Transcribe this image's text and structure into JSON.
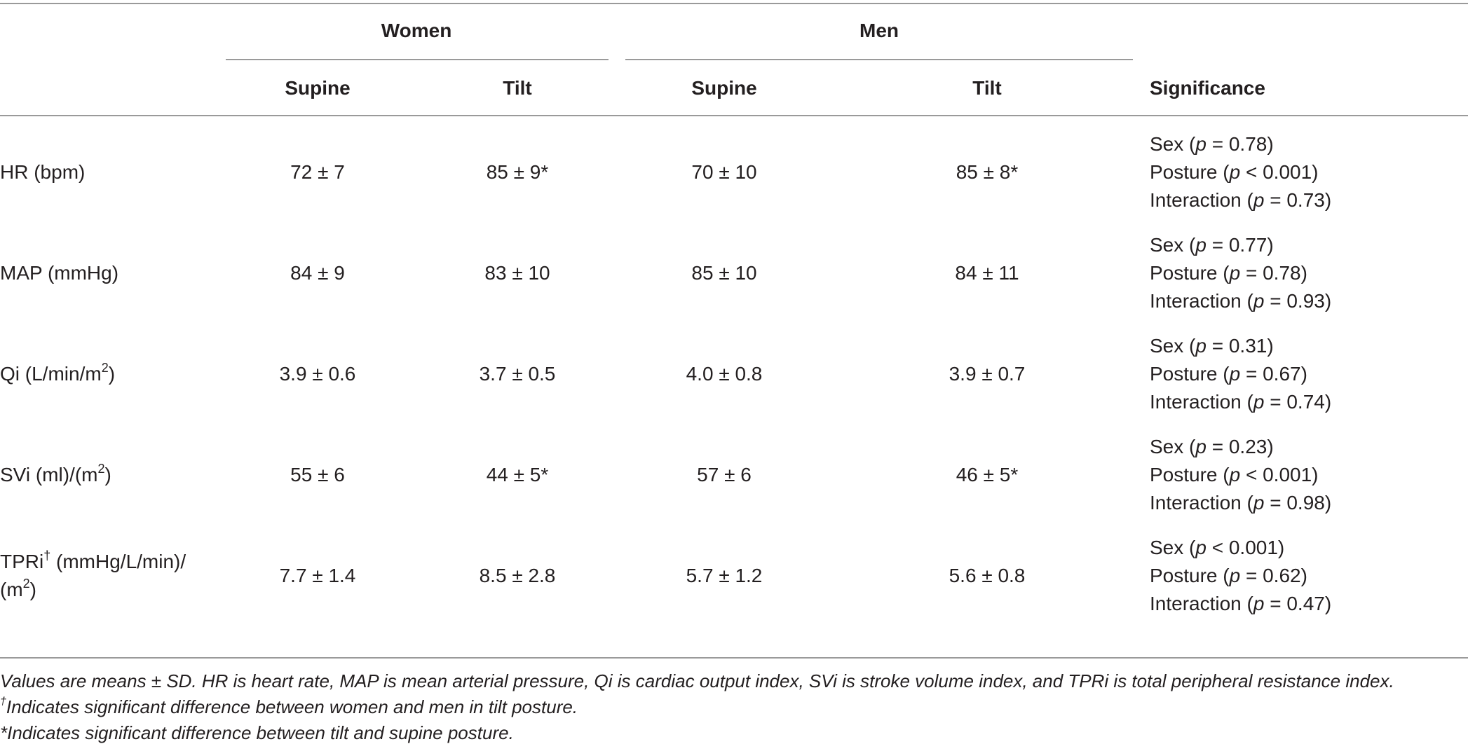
{
  "header": {
    "group_women": "Women",
    "group_men": "Men",
    "supine": "Supine",
    "tilt": "Tilt",
    "significance": "Significance"
  },
  "rows": [
    {
      "label": "HR (bpm)",
      "women_supine": "72 ± 7",
      "women_tilt": "85 ± 9*",
      "men_supine": "70 ± 10",
      "men_tilt": "85 ± 8*",
      "sig": [
        {
          "name": "Sex (",
          "p": "p",
          "val": " = 0.78)"
        },
        {
          "name": "Posture (",
          "p": "p",
          "val": " < 0.001)"
        },
        {
          "name": "Interaction (",
          "p": "p",
          "val": " = 0.73)"
        }
      ]
    },
    {
      "label": "MAP (mmHg)",
      "women_supine": "84 ± 9",
      "women_tilt": "83 ± 10",
      "men_supine": "85 ± 10",
      "men_tilt": "84 ± 11",
      "sig": [
        {
          "name": "Sex (",
          "p": "p",
          "val": " = 0.77)"
        },
        {
          "name": "Posture (",
          "p": "p",
          "val": " = 0.78)"
        },
        {
          "name": "Interaction (",
          "p": "p",
          "val": " = 0.93)"
        }
      ]
    },
    {
      "label_main": "Qi (L/min/m",
      "label_sup": "2",
      "label_end": ")",
      "women_supine": "3.9 ± 0.6",
      "women_tilt": "3.7 ± 0.5",
      "men_supine": "4.0 ± 0.8",
      "men_tilt": "3.9 ± 0.7",
      "sig": [
        {
          "name": "Sex (",
          "p": "p",
          "val": " = 0.31)"
        },
        {
          "name": "Posture (",
          "p": "p",
          "val": " = 0.67)"
        },
        {
          "name": "Interaction (",
          "p": "p",
          "val": " = 0.74)"
        }
      ]
    },
    {
      "label_main": "SVi (ml)/(m",
      "label_sup": "2",
      "label_end": ")",
      "women_supine": "55 ± 6",
      "women_tilt": "44 ± 5*",
      "men_supine": "57 ± 6",
      "men_tilt": "46 ± 5*",
      "sig": [
        {
          "name": "Sex (",
          "p": "p",
          "val": " = 0.23)"
        },
        {
          "name": "Posture (",
          "p": "p",
          "val": " < 0.001)"
        },
        {
          "name": "Interaction (",
          "p": "p",
          "val": " = 0.98)"
        }
      ]
    },
    {
      "label_main": "TPRi",
      "label_dagger": "†",
      "label_rest": " (mmHg/L/min)/",
      "label_line2": "(m",
      "label_sup": "2",
      "label_end": ")",
      "women_supine": "7.7 ± 1.4",
      "women_tilt": "8.5 ± 2.8",
      "men_supine": "5.7 ± 1.2",
      "men_tilt": "5.6 ± 0.8",
      "sig": [
        {
          "name": "Sex (",
          "p": "p",
          "val": " < 0.001)"
        },
        {
          "name": "Posture (",
          "p": "p",
          "val": " = 0.62)"
        },
        {
          "name": "Interaction (",
          "p": "p",
          "val": " = 0.47)"
        }
      ]
    }
  ],
  "footnotes": {
    "note1": "Values are means ± SD. HR is heart rate, MAP is mean arterial pressure, Qi is cardiac output index, SVi is stroke volume index, and TPRi is total peripheral resistance index.",
    "note2_mark": "†",
    "note2": "Indicates significant difference between women and men in tilt posture.",
    "note3": "*Indicates significant difference between tilt and supine posture."
  }
}
